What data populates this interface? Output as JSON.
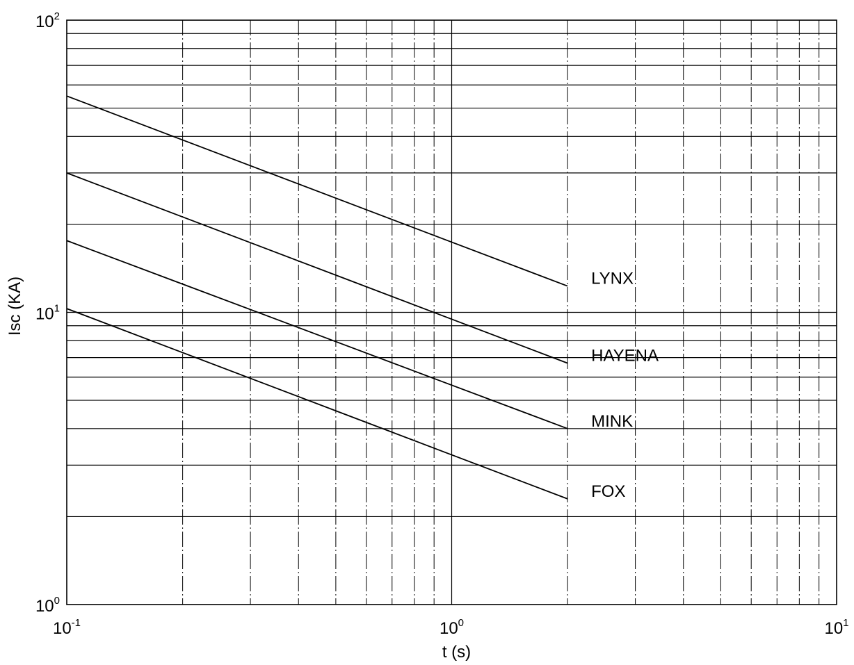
{
  "chart_data": {
    "type": "line",
    "title": "",
    "xlabel": "t (s)",
    "ylabel": "Isc (KA)",
    "xscale": "log",
    "yscale": "log",
    "xlim": [
      0.1,
      10
    ],
    "ylim": [
      1,
      100
    ],
    "x_ticks": [
      {
        "base": "10",
        "exp": "-1",
        "value": 0.1
      },
      {
        "base": "10",
        "exp": "0",
        "value": 1
      },
      {
        "base": "10",
        "exp": "1",
        "value": 10
      }
    ],
    "y_ticks": [
      {
        "base": "10",
        "exp": "0",
        "value": 1
      },
      {
        "base": "10",
        "exp": "1",
        "value": 10
      },
      {
        "base": "10",
        "exp": "2",
        "value": 100
      }
    ],
    "grid": true,
    "series": [
      {
        "name": "LYNX",
        "x": [
          0.1,
          2
        ],
        "y": [
          55,
          12.3
        ]
      },
      {
        "name": "HAYENA",
        "x": [
          0.1,
          2
        ],
        "y": [
          30,
          6.7
        ]
      },
      {
        "name": "MINK",
        "x": [
          0.1,
          2
        ],
        "y": [
          17.6,
          4
        ]
      },
      {
        "name": "FOX",
        "x": [
          0.1,
          2
        ],
        "y": [
          10.3,
          2.3
        ]
      }
    ]
  }
}
